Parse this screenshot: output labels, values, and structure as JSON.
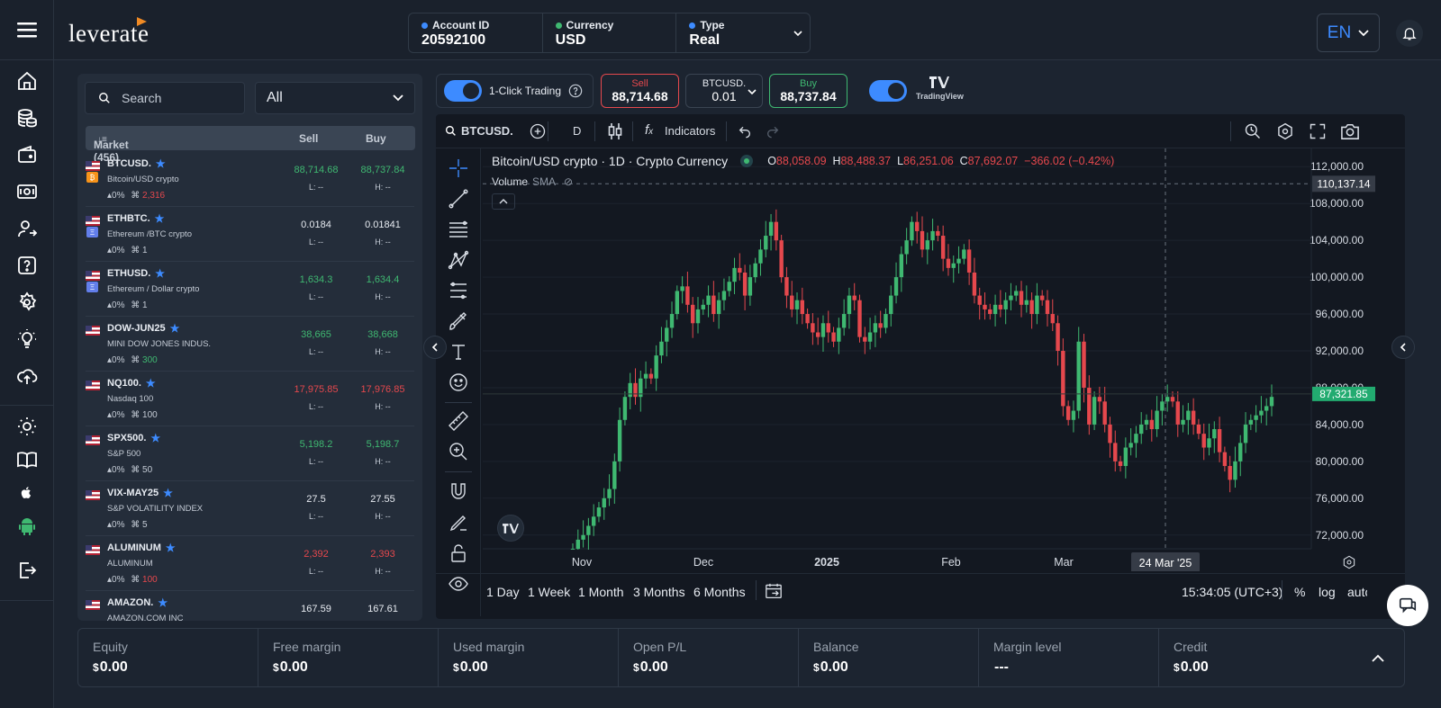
{
  "brand": {
    "logo": "leverate",
    "accent": "#3d8bff"
  },
  "account": {
    "id_label": "Account ID",
    "id_value": "20592100",
    "currency_label": "Currency",
    "currency_value": "USD",
    "type_label": "Type",
    "type_value": "Real"
  },
  "header": {
    "language": "EN"
  },
  "market": {
    "search_placeholder": "Search",
    "filter_value": "All",
    "header_label": "Market (456)",
    "sell_col": "Sell",
    "buy_col": "Buy",
    "rows": [
      {
        "symbol": "BTCUSD.",
        "desc": "Bitcoin/USD crypto",
        "change": "0%",
        "trades": "2,316",
        "sell": "88,714.68",
        "buy": "88,737.84",
        "low": "L: --",
        "high": "H: --"
      },
      {
        "symbol": "ETHBTC.",
        "desc": "Ethereum /BTC crypto",
        "change": "0%",
        "trades": "1",
        "sell": "0.0184",
        "buy": "0.01841",
        "low": "L: --",
        "high": "H: --"
      },
      {
        "symbol": "ETHUSD.",
        "desc": "Ethereum / Dollar crypto",
        "change": "0%",
        "trades": "1",
        "sell": "1,634.3",
        "buy": "1,634.4",
        "low": "L: --",
        "high": "H: --"
      },
      {
        "symbol": "DOW-JUN25",
        "desc": "MINI DOW JONES INDUS.",
        "change": "0%",
        "trades": "300",
        "sell": "38,665",
        "buy": "38,668",
        "low": "L: --",
        "high": "H: --"
      },
      {
        "symbol": "NQ100.",
        "desc": "Nasdaq 100",
        "change": "0%",
        "trades": "100",
        "sell": "17,975.85",
        "buy": "17,976.85",
        "low": "L: --",
        "high": "H: --"
      },
      {
        "symbol": "SPX500.",
        "desc": "S&P 500",
        "change": "0%",
        "trades": "50",
        "sell": "5,198.2",
        "buy": "5,198.7",
        "low": "L: --",
        "high": "H: --"
      },
      {
        "symbol": "VIX-MAY25",
        "desc": "S&P VOLATILITY INDEX",
        "change": "0%",
        "trades": "5",
        "sell": "27.5",
        "buy": "27.55",
        "low": "L: --",
        "high": "H: --"
      },
      {
        "symbol": "ALUMINUM",
        "desc": "ALUMINUM",
        "change": "0%",
        "trades": "100",
        "sell": "2,392",
        "buy": "2,393",
        "low": "L: --",
        "high": "H: --"
      },
      {
        "symbol": "AMAZON.",
        "desc": "AMAZON.COM INC",
        "change": "",
        "trades": "",
        "sell": "167.59",
        "buy": "167.61",
        "low": "",
        "high": ""
      }
    ]
  },
  "trade": {
    "one_click_label": "1-Click Trading",
    "sell_label": "Sell",
    "sell_price": "88,714.68",
    "symbol": "BTCUSD.",
    "lot": "0.01",
    "buy_label": "Buy",
    "buy_price": "88,737.84",
    "tv_label": "TradingView"
  },
  "chart_toolbar": {
    "symbol": "BTCUSD.",
    "interval": "D",
    "indicators": "Indicators"
  },
  "chart_legend": {
    "title": "Bitcoin/USD crypto · 1D · Crypto Currency",
    "o_label": "O",
    "o": "88,058.09",
    "h_label": "H",
    "h": "88,488.37",
    "l_label": "L",
    "l": "86,251.06",
    "c_label": "C",
    "c": "87,692.07",
    "change": "−366.02 (−0.42%)",
    "volume": "Volume",
    "sma": "SMA"
  },
  "chart_data": {
    "type": "candlestick",
    "y_ticks": [
      "112,000.00",
      "108,000.00",
      "104,000.00",
      "100,000.00",
      "96,000.00",
      "92,000.00",
      "88,000.00",
      "84,000.00",
      "80,000.00",
      "76,000.00",
      "72,000.00"
    ],
    "ylim": [
      71000,
      113000
    ],
    "x_ticks": [
      "Nov",
      "Dec",
      "2025",
      "Feb",
      "Mar",
      "24 Mar '25"
    ],
    "crosshair_price": "110,137.14",
    "last_price": "87,321.85",
    "closes": [
      70500,
      71500,
      72000,
      73000,
      74000,
      75000,
      76000,
      77000,
      80000,
      84500,
      87000,
      88500,
      87000,
      89000,
      89500,
      89000,
      91500,
      93000,
      94500,
      96000,
      98500,
      99000,
      97000,
      95000,
      96500,
      97000,
      98000,
      96000,
      97500,
      98500,
      99500,
      101000,
      100500,
      98000,
      100000,
      101500,
      103000,
      104500,
      106000,
      104000,
      100000,
      98000,
      96500,
      97500,
      96000,
      95000,
      94000,
      93500,
      95000,
      94000,
      93000,
      94500,
      96000,
      98000,
      97500,
      93500,
      93000,
      94000,
      95000,
      94500,
      96000,
      98000,
      100000,
      102500,
      104000,
      106000,
      105000,
      103000,
      104000,
      105000,
      104500,
      102000,
      101000,
      101500,
      102000,
      103000,
      100500,
      98000,
      97000,
      96500,
      96000,
      97000,
      96500,
      97500,
      98000,
      98500,
      97000,
      97500,
      96000,
      98000,
      97500,
      96000,
      95000,
      92000,
      86000,
      84500,
      85500,
      93000,
      88000,
      84000,
      87000,
      86500,
      84000,
      82000,
      80000,
      79500,
      81500,
      82000,
      83000,
      84000,
      84500,
      83500,
      85500,
      86500,
      87000,
      86500,
      84000,
      84500,
      85500,
      84000,
      83000,
      81500,
      82500,
      83500,
      81000,
      79500,
      78000,
      80000,
      82000,
      84000,
      84500,
      85000,
      85500,
      86000,
      87000
    ]
  },
  "chart_bottom": {
    "ranges": [
      "1 Day",
      "1 Week",
      "1 Month",
      "3 Months",
      "6 Months"
    ],
    "time": "15:34:05 (UTC+3)",
    "percent": "%",
    "log": "log",
    "auto": "auto"
  },
  "summary": [
    {
      "label": "Equity",
      "cur": "$",
      "value": "0.00"
    },
    {
      "label": "Free margin",
      "cur": "$",
      "value": "0.00"
    },
    {
      "label": "Used margin",
      "cur": "$",
      "value": "0.00"
    },
    {
      "label": "Open P/L",
      "cur": "$",
      "value": "0.00"
    },
    {
      "label": "Balance",
      "cur": "$",
      "value": "0.00"
    },
    {
      "label": "Margin level",
      "cur": "",
      "value": "---"
    },
    {
      "label": "Credit",
      "cur": "$",
      "value": "0.00"
    }
  ],
  "colors": {
    "up": "#3fb871",
    "down": "#e5484d",
    "panel": "#242d3a",
    "bg": "#1c2430"
  }
}
